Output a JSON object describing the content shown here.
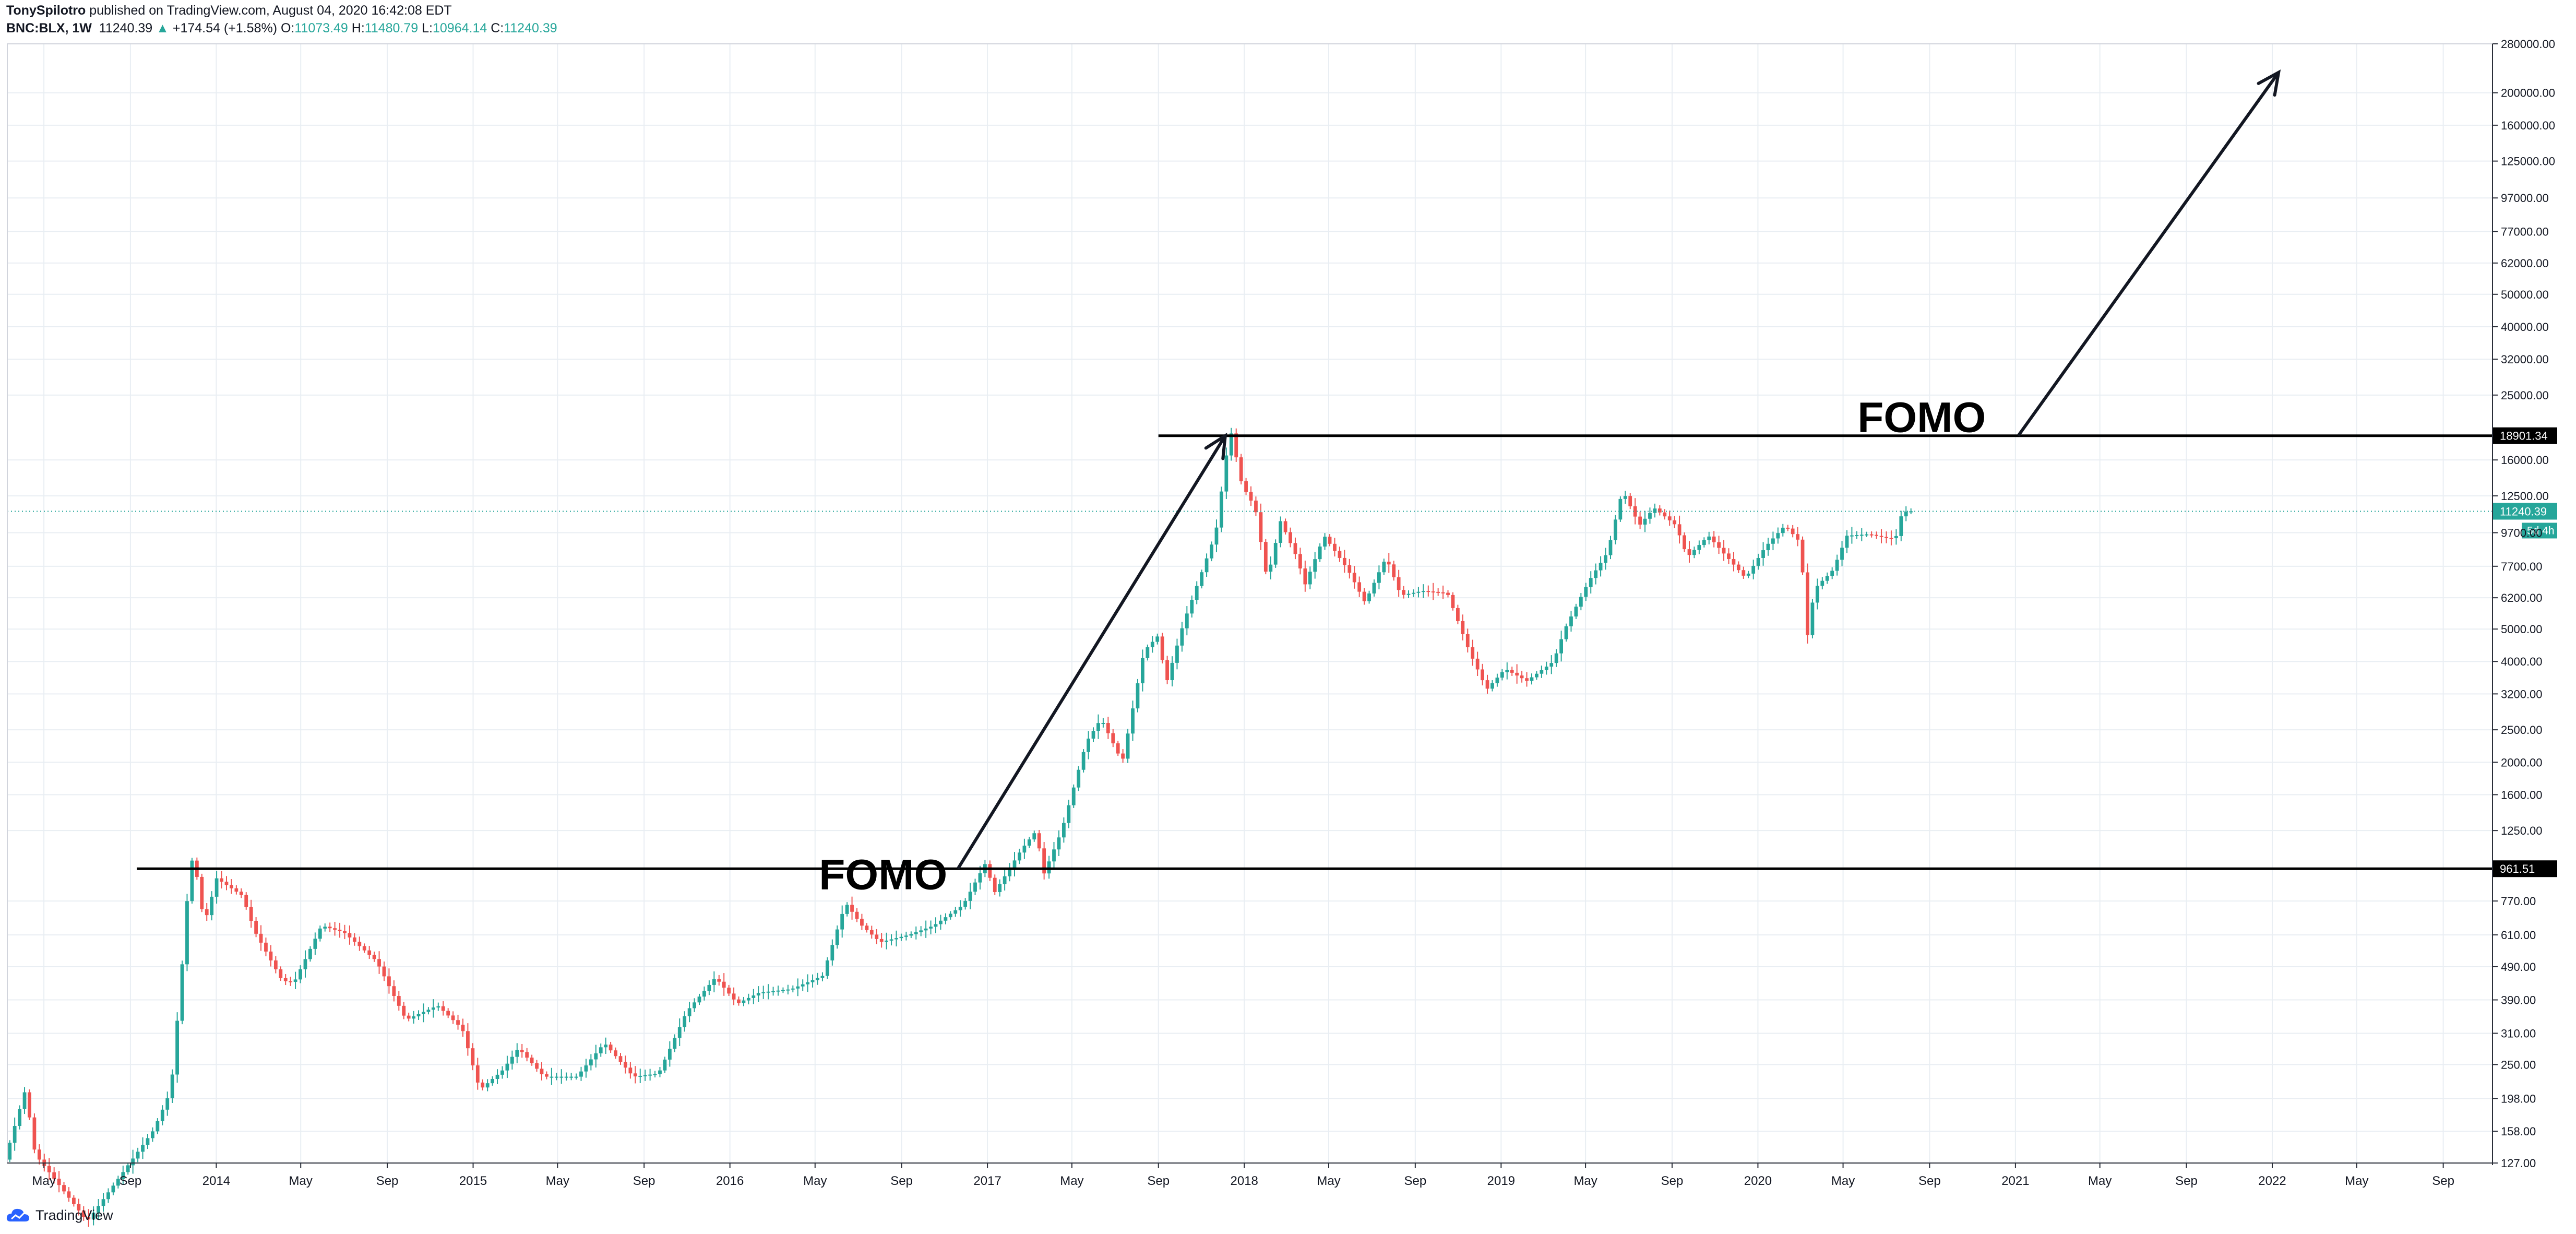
{
  "header": {
    "author": "TonySpilotro",
    "published": "published on TradingView.com, August 04, 2020 16:42:08 EDT",
    "symbol": "BNC:BLX, 1W",
    "last": "11240.39",
    "change_arrow": "▲",
    "change": "+174.54 (+1.58%)",
    "o_label": "O:",
    "o_val": "11073.49",
    "h_label": "H:",
    "h_val": "11480.79",
    "l_label": "L:",
    "l_val": "10964.14",
    "c_label": "C:",
    "c_val": "11240.39"
  },
  "footer": {
    "brand": "TradingView"
  },
  "colors": {
    "up": "#26a69a",
    "down": "#ef5350",
    "grid": "#e9eef3",
    "text": "#131722",
    "price_line": "#26a69a",
    "hline": "#000000",
    "annotation": "#131722"
  },
  "chart_data": {
    "type": "candlestick",
    "scale": "log",
    "interval": "1W",
    "ylim": [
      127,
      280000
    ],
    "xlim": [
      "2013-03-10",
      "2022-11-10"
    ],
    "grid": true,
    "y_ticks": [
      "280000.00",
      "200000.00",
      "160000.00",
      "125000.00",
      "97000.00",
      "77000.00",
      "62000.00",
      "50000.00",
      "40000.00",
      "32000.00",
      "25000.00",
      "16000.00",
      "12500.00",
      "9700.00",
      "7700.00",
      "6200.00",
      "5000.00",
      "4000.00",
      "3200.00",
      "2500.00",
      "2000.00",
      "1600.00",
      "1250.00",
      "770.00",
      "610.00",
      "490.00",
      "390.00",
      "310.00",
      "250.00",
      "198.00",
      "158.00",
      "127.00"
    ],
    "x_ticks": [
      {
        "date": "2013-05-01",
        "label": "May"
      },
      {
        "date": "2013-09-01",
        "label": "Sep"
      },
      {
        "date": "2014-01-01",
        "label": "2014"
      },
      {
        "date": "2014-05-01",
        "label": "May"
      },
      {
        "date": "2014-09-01",
        "label": "Sep"
      },
      {
        "date": "2015-01-01",
        "label": "2015"
      },
      {
        "date": "2015-05-01",
        "label": "May"
      },
      {
        "date": "2015-09-01",
        "label": "Sep"
      },
      {
        "date": "2016-01-01",
        "label": "2016"
      },
      {
        "date": "2016-05-01",
        "label": "May"
      },
      {
        "date": "2016-09-01",
        "label": "Sep"
      },
      {
        "date": "2017-01-01",
        "label": "2017"
      },
      {
        "date": "2017-05-01",
        "label": "May"
      },
      {
        "date": "2017-09-01",
        "label": "Sep"
      },
      {
        "date": "2018-01-01",
        "label": "2018"
      },
      {
        "date": "2018-05-01",
        "label": "May"
      },
      {
        "date": "2018-09-01",
        "label": "Sep"
      },
      {
        "date": "2019-01-01",
        "label": "2019"
      },
      {
        "date": "2019-05-01",
        "label": "May"
      },
      {
        "date": "2019-09-01",
        "label": "Sep"
      },
      {
        "date": "2020-01-01",
        "label": "2020"
      },
      {
        "date": "2020-05-01",
        "label": "May"
      },
      {
        "date": "2020-09-01",
        "label": "Sep"
      },
      {
        "date": "2021-01-01",
        "label": "2021"
      },
      {
        "date": "2021-05-01",
        "label": "May"
      },
      {
        "date": "2021-09-01",
        "label": "Sep"
      },
      {
        "date": "2022-01-01",
        "label": "2022"
      },
      {
        "date": "2022-05-01",
        "label": "May"
      },
      {
        "date": "2022-09-01",
        "label": "Sep"
      }
    ],
    "last_price": {
      "value": 11240.39,
      "label": "11240.39",
      "countdown": "5d 4h"
    },
    "horizontal_lines": [
      {
        "value": 18901.34,
        "label": "18901.34",
        "from": "2017-09-01"
      },
      {
        "value": 961.51,
        "label": "961.51",
        "from": "2013-09-10"
      }
    ],
    "annotations": [
      {
        "text": "FOMO",
        "date": "2016-11-05",
        "value": 835
      },
      {
        "text": "FOMO",
        "date": "2020-11-20",
        "value": 19400
      }
    ],
    "arrows": [
      {
        "from": {
          "date": "2016-11-20",
          "value": 961.51
        },
        "to": {
          "date": "2017-12-05",
          "value": 18901.34
        }
      },
      {
        "from": {
          "date": "2021-01-05",
          "value": 18901.34
        },
        "to": {
          "date": "2022-01-10",
          "value": 230000
        }
      }
    ],
    "anchors": [
      {
        "date": "2013-03-10",
        "value": 130
      },
      {
        "date": "2013-04-08",
        "value": 210
      },
      {
        "date": "2013-04-22",
        "value": 135
      },
      {
        "date": "2013-07-05",
        "value": 85
      },
      {
        "date": "2013-09-01",
        "value": 125
      },
      {
        "date": "2013-10-08",
        "value": 160
      },
      {
        "date": "2013-11-01",
        "value": 210
      },
      {
        "date": "2013-11-15",
        "value": 440
      },
      {
        "date": "2013-11-29",
        "value": 1050
      },
      {
        "date": "2013-12-10",
        "value": 880
      },
      {
        "date": "2013-12-18",
        "value": 650
      },
      {
        "date": "2014-01-05",
        "value": 900
      },
      {
        "date": "2014-02-10",
        "value": 800
      },
      {
        "date": "2014-03-01",
        "value": 620
      },
      {
        "date": "2014-04-08",
        "value": 445
      },
      {
        "date": "2014-04-25",
        "value": 440
      },
      {
        "date": "2014-06-03",
        "value": 650
      },
      {
        "date": "2014-07-05",
        "value": 620
      },
      {
        "date": "2014-08-20",
        "value": 510
      },
      {
        "date": "2014-10-01",
        "value": 340
      },
      {
        "date": "2014-11-15",
        "value": 375
      },
      {
        "date": "2014-12-20",
        "value": 320
      },
      {
        "date": "2015-01-14",
        "value": 210
      },
      {
        "date": "2015-02-15",
        "value": 240
      },
      {
        "date": "2015-03-10",
        "value": 280
      },
      {
        "date": "2015-04-15",
        "value": 230
      },
      {
        "date": "2015-06-01",
        "value": 230
      },
      {
        "date": "2015-07-10",
        "value": 290
      },
      {
        "date": "2015-08-20",
        "value": 230
      },
      {
        "date": "2015-09-25",
        "value": 235
      },
      {
        "date": "2015-11-04",
        "value": 360
      },
      {
        "date": "2015-12-15",
        "value": 455
      },
      {
        "date": "2016-01-15",
        "value": 380
      },
      {
        "date": "2016-02-15",
        "value": 410
      },
      {
        "date": "2016-04-01",
        "value": 420
      },
      {
        "date": "2016-05-15",
        "value": 460
      },
      {
        "date": "2016-06-17",
        "value": 760
      },
      {
        "date": "2016-07-10",
        "value": 650
      },
      {
        "date": "2016-08-05",
        "value": 580
      },
      {
        "date": "2016-09-15",
        "value": 610
      },
      {
        "date": "2016-10-20",
        "value": 650
      },
      {
        "date": "2016-12-01",
        "value": 750
      },
      {
        "date": "2017-01-04",
        "value": 1020
      },
      {
        "date": "2017-01-12",
        "value": 800
      },
      {
        "date": "2017-02-22",
        "value": 1100
      },
      {
        "date": "2017-03-15",
        "value": 1250
      },
      {
        "date": "2017-03-25",
        "value": 920
      },
      {
        "date": "2017-04-20",
        "value": 1250
      },
      {
        "date": "2017-05-25",
        "value": 2300
      },
      {
        "date": "2017-06-15",
        "value": 2700
      },
      {
        "date": "2017-07-15",
        "value": 2000
      },
      {
        "date": "2017-08-15",
        "value": 4300
      },
      {
        "date": "2017-09-05",
        "value": 4800
      },
      {
        "date": "2017-09-15",
        "value": 3400
      },
      {
        "date": "2017-10-10",
        "value": 5200
      },
      {
        "date": "2017-11-01",
        "value": 7000
      },
      {
        "date": "2017-11-25",
        "value": 9700
      },
      {
        "date": "2017-12-10",
        "value": 16500
      },
      {
        "date": "2017-12-17",
        "value": 19200
      },
      {
        "date": "2018-01-01",
        "value": 13500
      },
      {
        "date": "2018-01-20",
        "value": 11500
      },
      {
        "date": "2018-02-06",
        "value": 7000
      },
      {
        "date": "2018-02-25",
        "value": 10500
      },
      {
        "date": "2018-03-20",
        "value": 8200
      },
      {
        "date": "2018-04-01",
        "value": 6800
      },
      {
        "date": "2018-04-28",
        "value": 9500
      },
      {
        "date": "2018-06-01",
        "value": 7500
      },
      {
        "date": "2018-06-25",
        "value": 6000
      },
      {
        "date": "2018-07-25",
        "value": 8200
      },
      {
        "date": "2018-08-15",
        "value": 6300
      },
      {
        "date": "2018-09-15",
        "value": 6500
      },
      {
        "date": "2018-10-20",
        "value": 6400
      },
      {
        "date": "2018-11-20",
        "value": 4300
      },
      {
        "date": "2018-12-15",
        "value": 3300
      },
      {
        "date": "2019-01-10",
        "value": 3800
      },
      {
        "date": "2019-02-10",
        "value": 3500
      },
      {
        "date": "2019-03-20",
        "value": 4000
      },
      {
        "date": "2019-04-05",
        "value": 5000
      },
      {
        "date": "2019-05-10",
        "value": 7000
      },
      {
        "date": "2019-06-05",
        "value": 8500
      },
      {
        "date": "2019-06-26",
        "value": 13000
      },
      {
        "date": "2019-07-20",
        "value": 10200
      },
      {
        "date": "2019-08-10",
        "value": 11500
      },
      {
        "date": "2019-09-10",
        "value": 10200
      },
      {
        "date": "2019-09-26",
        "value": 8200
      },
      {
        "date": "2019-10-26",
        "value": 9500
      },
      {
        "date": "2019-11-15",
        "value": 8500
      },
      {
        "date": "2019-12-18",
        "value": 7100
      },
      {
        "date": "2020-01-15",
        "value": 8800
      },
      {
        "date": "2020-02-12",
        "value": 10200
      },
      {
        "date": "2020-03-06",
        "value": 9000
      },
      {
        "date": "2020-03-13",
        "value": 4500
      },
      {
        "date": "2020-03-25",
        "value": 6600
      },
      {
        "date": "2020-04-20",
        "value": 7500
      },
      {
        "date": "2020-05-10",
        "value": 9500
      },
      {
        "date": "2020-06-10",
        "value": 9600
      },
      {
        "date": "2020-07-10",
        "value": 9300
      },
      {
        "date": "2020-07-20",
        "value": 9500
      },
      {
        "date": "2020-07-27",
        "value": 11100
      },
      {
        "date": "2020-08-03",
        "value": 11240
      }
    ]
  }
}
